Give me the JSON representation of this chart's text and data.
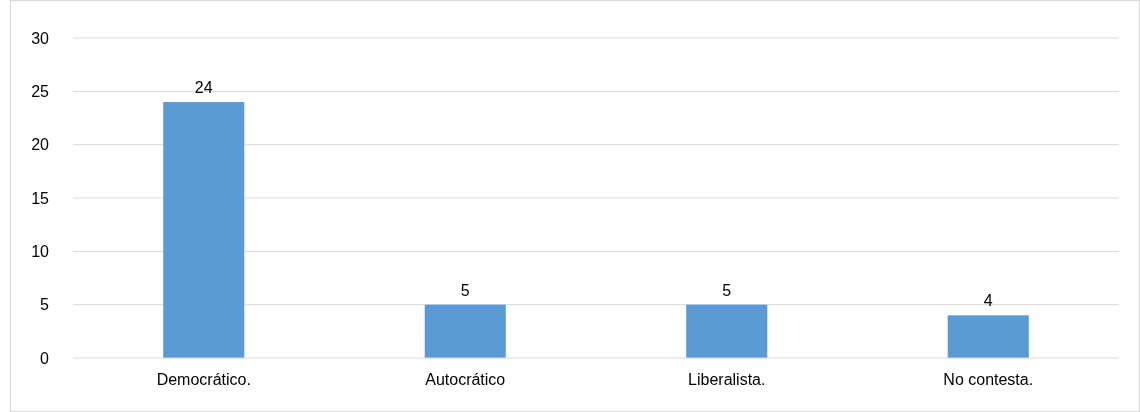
{
  "chart_data": {
    "type": "bar",
    "categories": [
      "Democrático.",
      "Autocrático",
      "Liberalista.",
      "No contesta."
    ],
    "values": [
      24,
      5,
      5,
      4
    ],
    "color": "#5b9bd5",
    "ylim": [
      0,
      30
    ],
    "yticks": [
      0,
      5,
      10,
      15,
      20,
      25,
      30
    ],
    "grid": "y",
    "data_labels": true
  }
}
